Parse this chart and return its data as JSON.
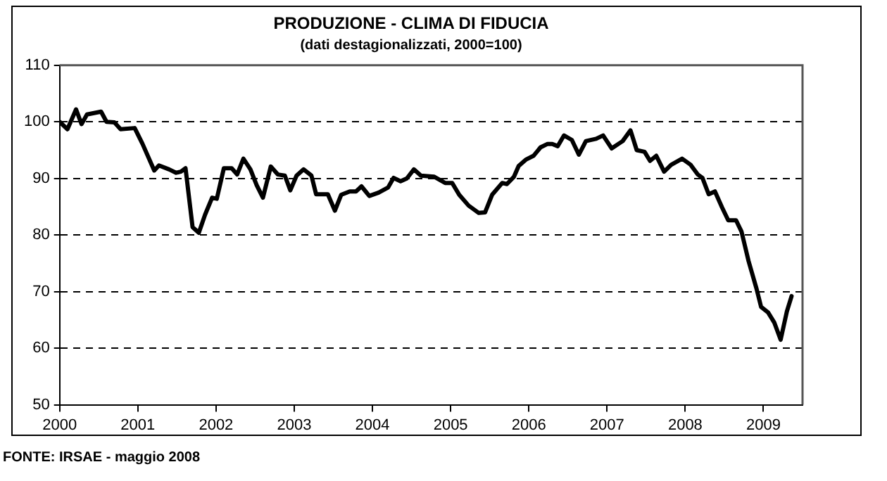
{
  "chart_data": {
    "type": "line",
    "title": "PRODUZIONE - CLIMA DI FIDUCIA",
    "subtitle": "(dati destagionalizzati, 2000=100)",
    "annotations": [
      "FONTE: IRSAE - maggio 2008"
    ],
    "xlim": [
      2000,
      2009.5
    ],
    "xticks": [
      2000,
      2001,
      2002,
      2003,
      2004,
      2005,
      2006,
      2007,
      2008,
      2009
    ],
    "ylim": [
      50,
      110
    ],
    "yticks": [
      50,
      60,
      70,
      80,
      90,
      100,
      110
    ],
    "grid": "y",
    "legend": false,
    "marker": "none",
    "line_style": "solid",
    "series": [
      {
        "color": "#000000",
        "x": [
          2000.0,
          2000.1,
          2000.21,
          2000.28,
          2000.35,
          2000.53,
          2000.6,
          2000.7,
          2000.78,
          2000.96,
          2001.06,
          2001.21,
          2001.27,
          2001.4,
          2001.49,
          2001.55,
          2001.61,
          2001.7,
          2001.78,
          2001.86,
          2001.95,
          2002.01,
          2002.1,
          2002.2,
          2002.27,
          2002.35,
          2002.44,
          2002.52,
          2002.6,
          2002.7,
          2002.79,
          2002.88,
          2002.95,
          2003.03,
          2003.12,
          2003.22,
          2003.28,
          2003.43,
          2003.52,
          2003.6,
          2003.71,
          2003.79,
          2003.86,
          2003.96,
          2004.08,
          2004.2,
          2004.27,
          2004.36,
          2004.44,
          2004.53,
          2004.62,
          2004.79,
          2004.93,
          2005.02,
          2005.11,
          2005.23,
          2005.36,
          2005.44,
          2005.53,
          2005.66,
          2005.72,
          2005.81,
          2005.87,
          2005.96,
          2006.06,
          2006.15,
          2006.24,
          2006.3,
          2006.37,
          2006.45,
          2006.55,
          2006.64,
          2006.73,
          2006.86,
          2006.95,
          2007.06,
          2007.2,
          2007.3,
          2007.38,
          2007.48,
          2007.55,
          2007.63,
          2007.73,
          2007.82,
          2007.96,
          2008.07,
          2008.16,
          2008.22,
          2008.3,
          2008.38,
          2008.47,
          2008.55,
          2008.65,
          2008.72,
          2008.81,
          2008.91,
          2008.97,
          2009.06,
          2009.14,
          2009.22,
          2009.3,
          2009.36
        ],
        "values": [
          100.0,
          98.7,
          102.2,
          99.6,
          101.3,
          101.8,
          100.0,
          99.9,
          98.7,
          98.9,
          96.1,
          91.4,
          92.3,
          91.6,
          91.0,
          91.2,
          91.8,
          81.4,
          80.4,
          83.6,
          86.6,
          86.4,
          91.8,
          91.8,
          90.7,
          93.5,
          91.6,
          88.8,
          86.6,
          92.1,
          90.7,
          90.5,
          87.9,
          90.5,
          91.6,
          90.5,
          87.2,
          87.2,
          84.3,
          87.1,
          87.7,
          87.7,
          88.6,
          86.9,
          87.5,
          88.4,
          90.1,
          89.5,
          90.0,
          91.6,
          90.5,
          90.3,
          89.2,
          89.2,
          87.1,
          85.2,
          83.9,
          84.0,
          87.1,
          89.2,
          89.0,
          90.3,
          92.2,
          93.3,
          94.0,
          95.5,
          96.1,
          96.1,
          95.7,
          97.6,
          96.8,
          94.2,
          96.6,
          97.0,
          97.6,
          95.3,
          96.6,
          98.5,
          95.0,
          94.7,
          93.1,
          94.0,
          91.2,
          92.4,
          93.5,
          92.4,
          90.7,
          90.1,
          87.2,
          87.7,
          84.9,
          82.6,
          82.6,
          80.6,
          75.4,
          70.6,
          67.3,
          66.3,
          64.5,
          61.5,
          66.5,
          69.2
        ]
      }
    ]
  }
}
